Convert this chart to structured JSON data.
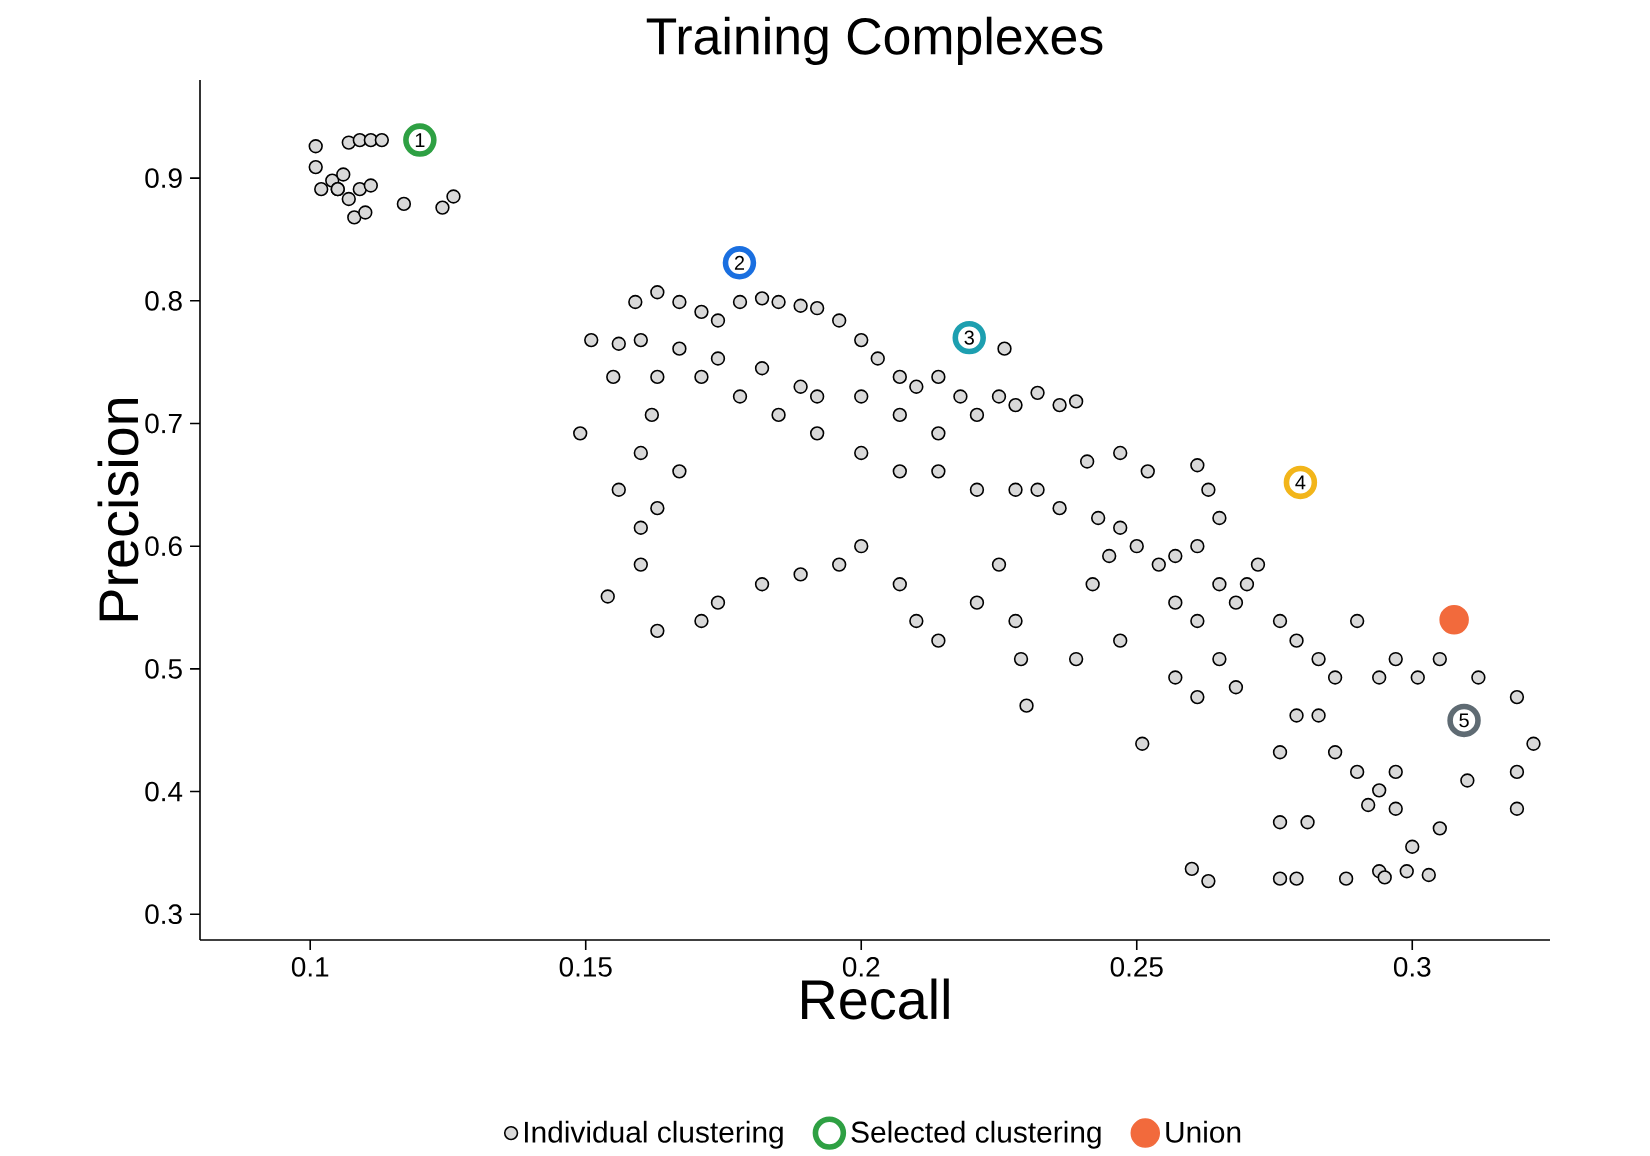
{
  "chart_data": {
    "type": "scatter",
    "title": "Training Complexes",
    "xlabel": "Recall",
    "ylabel": "Precision",
    "xlim": [
      0.08,
      0.325
    ],
    "ylim": [
      0.279,
      0.98
    ],
    "xticks": [
      0.1,
      0.15,
      0.2,
      0.25,
      0.3
    ],
    "yticks": [
      0.3,
      0.4,
      0.5,
      0.6,
      0.7,
      0.8,
      0.9
    ],
    "legend": "bottom",
    "marker": "circle",
    "series": [
      {
        "name": "Individual clustering",
        "color": "#d9d9d9",
        "x": [
          0.101,
          0.101,
          0.104,
          0.105,
          0.107,
          0.109,
          0.111,
          0.113,
          0.105,
          0.107,
          0.109,
          0.111,
          0.108,
          0.11,
          0.117,
          0.124,
          0.126,
          0.102,
          0.106,
          0.151,
          0.155,
          0.156,
          0.159,
          0.163,
          0.167,
          0.171,
          0.174,
          0.178,
          0.182,
          0.185,
          0.189,
          0.192,
          0.196,
          0.2,
          0.203,
          0.207,
          0.21,
          0.214,
          0.218,
          0.221,
          0.225,
          0.226,
          0.228,
          0.232,
          0.236,
          0.239,
          0.214,
          0.207,
          0.2,
          0.192,
          0.189,
          0.182,
          0.174,
          0.167,
          0.16,
          0.163,
          0.171,
          0.178,
          0.185,
          0.192,
          0.2,
          0.207,
          0.214,
          0.221,
          0.228,
          0.236,
          0.243,
          0.247,
          0.25,
          0.254,
          0.257,
          0.261,
          0.265,
          0.268,
          0.272,
          0.276,
          0.279,
          0.283,
          0.286,
          0.29,
          0.294,
          0.297,
          0.301,
          0.305,
          0.312,
          0.319,
          0.154,
          0.16,
          0.163,
          0.167,
          0.16,
          0.156,
          0.16,
          0.163,
          0.171,
          0.174,
          0.182,
          0.189,
          0.196,
          0.2,
          0.207,
          0.21,
          0.214,
          0.221,
          0.225,
          0.228,
          0.229,
          0.23,
          0.239,
          0.247,
          0.251,
          0.257,
          0.261,
          0.265,
          0.268,
          0.276,
          0.279,
          0.283,
          0.286,
          0.29,
          0.294,
          0.297,
          0.305,
          0.31,
          0.319,
          0.322,
          0.319,
          0.276,
          0.281,
          0.292,
          0.297,
          0.3,
          0.303,
          0.26,
          0.263,
          0.276,
          0.279,
          0.288,
          0.294,
          0.295,
          0.299,
          0.232,
          0.241,
          0.247,
          0.252,
          0.261,
          0.263,
          0.265,
          0.162,
          0.149,
          0.261,
          0.27,
          0.242,
          0.245,
          0.257
        ],
        "values": [
          0.926,
          0.909,
          0.898,
          0.891,
          0.929,
          0.931,
          0.931,
          0.931,
          0.891,
          0.883,
          0.891,
          0.894,
          0.868,
          0.872,
          0.879,
          0.876,
          0.885,
          0.891,
          0.903,
          0.768,
          0.738,
          0.765,
          0.799,
          0.807,
          0.799,
          0.791,
          0.784,
          0.799,
          0.802,
          0.799,
          0.796,
          0.794,
          0.784,
          0.768,
          0.753,
          0.738,
          0.73,
          0.738,
          0.722,
          0.707,
          0.722,
          0.761,
          0.715,
          0.725,
          0.715,
          0.718,
          0.692,
          0.707,
          0.722,
          0.722,
          0.73,
          0.745,
          0.753,
          0.761,
          0.768,
          0.738,
          0.738,
          0.722,
          0.707,
          0.692,
          0.676,
          0.661,
          0.661,
          0.646,
          0.646,
          0.631,
          0.623,
          0.615,
          0.6,
          0.585,
          0.592,
          0.6,
          0.569,
          0.554,
          0.585,
          0.539,
          0.523,
          0.508,
          0.493,
          0.539,
          0.493,
          0.508,
          0.493,
          0.508,
          0.493,
          0.477,
          0.559,
          0.615,
          0.631,
          0.661,
          0.676,
          0.646,
          0.585,
          0.531,
          0.539,
          0.554,
          0.569,
          0.577,
          0.585,
          0.6,
          0.569,
          0.539,
          0.523,
          0.554,
          0.585,
          0.539,
          0.508,
          0.47,
          0.508,
          0.523,
          0.439,
          0.493,
          0.477,
          0.508,
          0.485,
          0.432,
          0.462,
          0.462,
          0.432,
          0.416,
          0.401,
          0.416,
          0.37,
          0.409,
          0.416,
          0.439,
          0.386,
          0.375,
          0.375,
          0.389,
          0.386,
          0.355,
          0.332,
          0.337,
          0.327,
          0.329,
          0.329,
          0.329,
          0.335,
          0.33,
          0.335,
          0.646,
          0.669,
          0.676,
          0.661,
          0.666,
          0.646,
          0.623,
          0.707,
          0.692,
          0.539,
          0.569,
          0.569,
          0.592,
          0.554
        ]
      },
      {
        "name": "Selected clustering",
        "colors": [
          "#2ea043",
          "#1a6fe0",
          "#1d9fb0",
          "#f2b51a",
          "#5f6b73"
        ],
        "x": [
          0.1199,
          0.1779,
          0.2196,
          0.2797,
          0.3094
        ],
        "values": [
          0.931,
          0.831,
          0.77,
          0.652,
          0.458
        ]
      },
      {
        "name": "Union",
        "color": "#f26a3c",
        "x": [
          0.3076
        ],
        "values": [
          0.54
        ]
      }
    ],
    "annotations": [
      {
        "text": "1",
        "x": 0.1199,
        "y": 0.931
      },
      {
        "text": "2",
        "x": 0.1779,
        "y": 0.831
      },
      {
        "text": "3",
        "x": 0.2196,
        "y": 0.77
      },
      {
        "text": "4",
        "x": 0.2797,
        "y": 0.652
      },
      {
        "text": "5",
        "x": 0.3094,
        "y": 0.458
      }
    ]
  }
}
